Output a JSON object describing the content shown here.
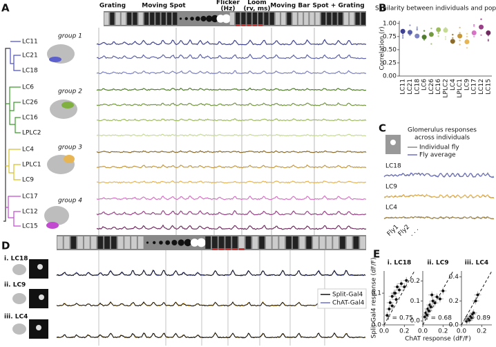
{
  "panel_labels": [
    "A",
    "B",
    "C",
    "D",
    "E"
  ],
  "panel_a": {
    "stimuli": [
      [
        "Grating"
      ],
      [
        "Moving Spot"
      ],
      [
        "Flicker",
        "(Hz)"
      ],
      [
        "Loom",
        "(rv, ms)"
      ],
      [
        "Moving Bar"
      ],
      [
        "Spot + Grating"
      ]
    ],
    "groups": [
      "group 1",
      "group 2",
      "group 3",
      "group 4"
    ],
    "cells": [
      {
        "name": "LC11",
        "color": "#3d4190"
      },
      {
        "name": "LC21",
        "color": "#5b60aa"
      },
      {
        "name": "LC18",
        "color": "#7c81c2"
      },
      {
        "name": "LC6",
        "color": "#4f7d2b"
      },
      {
        "name": "LC26",
        "color": "#72993d"
      },
      {
        "name": "LC16",
        "color": "#9dbd5c"
      },
      {
        "name": "LPLC2",
        "color": "#c5db95"
      },
      {
        "name": "LC4",
        "color": "#8b6b2b"
      },
      {
        "name": "LPLC1",
        "color": "#c7983b"
      },
      {
        "name": "LC9",
        "color": "#e8b554"
      },
      {
        "name": "LC17",
        "color": "#d872c6"
      },
      {
        "name": "LC12",
        "color": "#9b4088"
      },
      {
        "name": "LC15",
        "color": "#6f2b60"
      }
    ]
  },
  "panel_c": {
    "title": [
      "Glomerulus responses",
      "across individuals"
    ],
    "legend": [
      {
        "name": "Individual fly",
        "color": "#8a8a8a"
      },
      {
        "name": "Fly average",
        "color": "#6a6fbf"
      }
    ],
    "rows": [
      "LC18",
      "LC9",
      "LC4"
    ],
    "flies": [
      "Fly1",
      "Fly2",
      ". . ."
    ]
  },
  "panel_d": {
    "rows": [
      "i. LC18",
      "ii. LC9",
      "iii. LC4"
    ],
    "legend": [
      {
        "name": "Split-Gal4",
        "color": "#111111"
      },
      {
        "name": "ChAT-Gal4",
        "color": "#6a6fd0"
      }
    ]
  },
  "chart_data": [
    {
      "type": "scatter",
      "title": "Similarity between individuals and population",
      "y_label": "Correlation (r)",
      "categories": [
        "LC11",
        "LC21",
        "LC18",
        "LC6",
        "LC26",
        "LC16",
        "LPLC2",
        "LC4",
        "LPLC1",
        "LC9",
        "LC17",
        "LC12",
        "LC15"
      ],
      "values": [
        0.85,
        0.83,
        0.76,
        0.74,
        0.79,
        0.88,
        0.87,
        0.66,
        0.76,
        0.65,
        0.82,
        0.93,
        0.82
      ],
      "colors": [
        "#3d4190",
        "#5b60aa",
        "#7c81c2",
        "#4f7d2b",
        "#72993d",
        "#9dbd5c",
        "#c5db95",
        "#8b6b2b",
        "#c7983b",
        "#e8b554",
        "#d872c6",
        "#9b4088",
        "#6f2b60"
      ],
      "ylim": [
        0,
        1.05
      ],
      "yticks": [
        {
          "value": 0,
          "label": "0.00"
        },
        {
          "value": 0.25,
          "label": "0.25"
        },
        {
          "value": 0.5,
          "label": "0.50"
        },
        {
          "value": 0.75,
          "label": "0.75"
        },
        {
          "value": 1,
          "label": "1.00"
        }
      ]
    },
    {
      "type": "scatter",
      "title": "i. LC18",
      "y_label": "Split-Gal4 response (dF/F)",
      "annotation": "r = 0.75",
      "x": [
        0.03,
        0.05,
        0.06,
        0.08,
        0.1,
        0.12,
        0.13,
        0.15,
        0.17,
        0.2,
        0.22,
        0.08,
        0.11
      ],
      "values": [
        0.03,
        0.05,
        0.07,
        0.09,
        0.1,
        0.08,
        0.12,
        0.11,
        0.13,
        0.12,
        0.14,
        0.06,
        0.1
      ],
      "xlim": [
        0,
        0.3
      ],
      "ylim": [
        0,
        0.17
      ],
      "xticks": [
        {
          "value": 0,
          "label": "0.0"
        },
        0.2
      ],
      "yticks": [
        {
          "value": 0,
          "label": "0.0"
        },
        0.1
      ]
    },
    {
      "type": "scatter",
      "title": "ii. LC9",
      "x_label": "ChAT response (dF/F)",
      "annotation": "r = 0.68",
      "x": [
        0.02,
        0.03,
        0.04,
        0.05,
        0.06,
        0.07,
        0.08,
        0.1,
        0.12,
        0.14,
        0.17,
        0.2,
        0.09
      ],
      "values": [
        0.02,
        0.04,
        0.03,
        0.06,
        0.05,
        0.08,
        0.07,
        0.1,
        0.09,
        0.12,
        0.11,
        0.15,
        0.13
      ],
      "xlim": [
        0,
        0.3
      ],
      "ylim": [
        -0.02,
        0.25
      ],
      "xticks": [
        {
          "value": 0,
          "label": "0.0"
        },
        0.2
      ],
      "yticks": [
        {
          "value": 0,
          "label": "0.0"
        },
        0.1,
        0.2
      ]
    },
    {
      "type": "scatter",
      "title": "iii. LC4",
      "annotation": "r = 0.89",
      "x": [
        0.05,
        0.06,
        0.07,
        0.08,
        0.09,
        0.1,
        0.11,
        0.12,
        0.14,
        0.16
      ],
      "values": [
        0.03,
        0.04,
        0.05,
        0.04,
        0.07,
        0.06,
        0.09,
        0.1,
        0.2,
        0.25
      ],
      "xlim": [
        0,
        0.3
      ],
      "ylim": [
        0,
        0.45
      ],
      "xticks": [
        {
          "value": 0,
          "label": "0.0"
        },
        0.2
      ],
      "yticks": [
        {
          "value": 0,
          "label": "0.0"
        },
        0.2,
        0.4
      ]
    }
  ]
}
